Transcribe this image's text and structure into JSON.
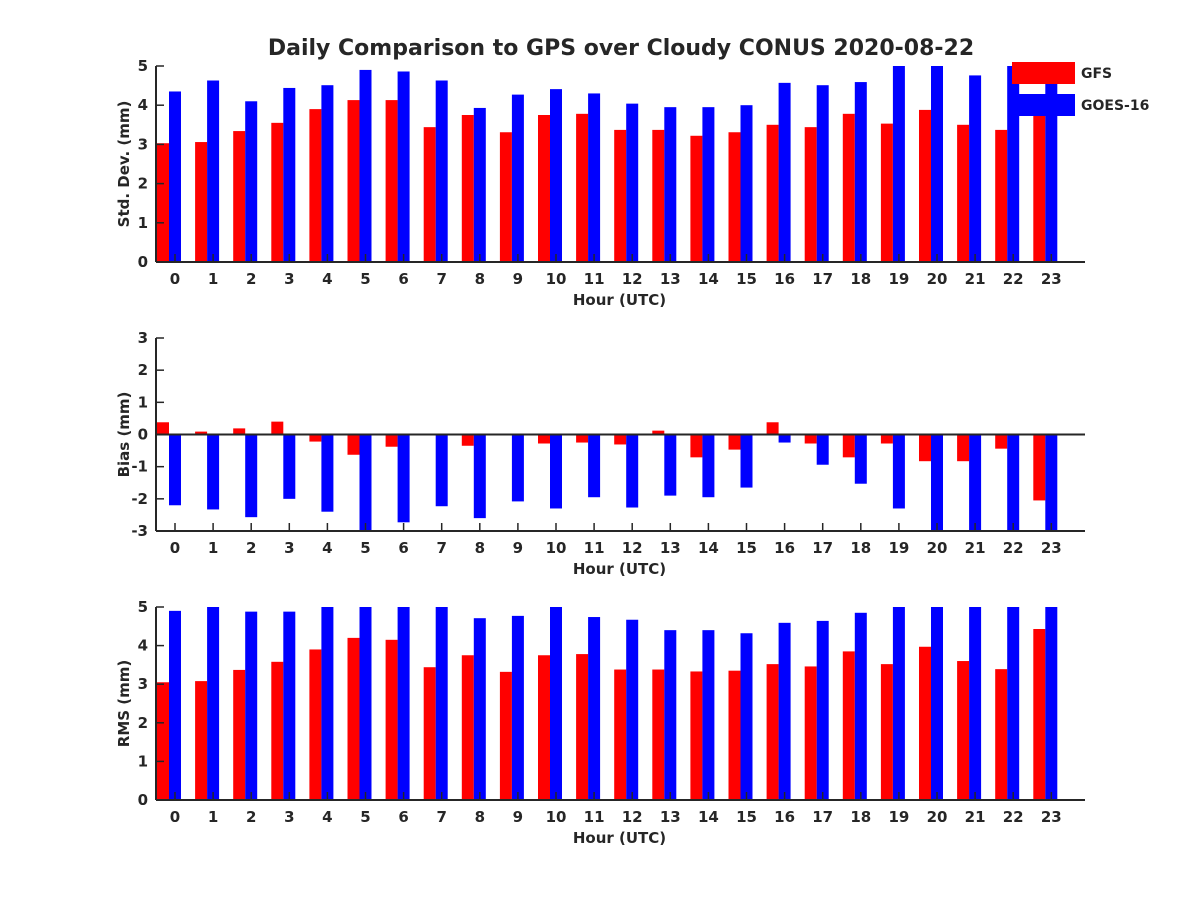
{
  "title": "Daily Comparison to GPS over Cloudy CONUS 2020-08-22",
  "legend": {
    "placement": "top-right",
    "entries": [
      {
        "label": "GFS",
        "color": "#ff0000"
      },
      {
        "label": "GOES-16",
        "color": "#0000ff"
      }
    ]
  },
  "colors": {
    "GFS": "#ff0000",
    "GOES-16": "#0000ff",
    "axis": "#262626"
  },
  "chart_data": [
    {
      "type": "bar",
      "xlabel": "Hour (UTC)",
      "ylabel": "Std. Dev. (mm)",
      "ylim": [
        0,
        5
      ],
      "yticks": [
        0,
        1,
        2,
        3,
        4,
        5
      ],
      "categories": [
        "0",
        "1",
        "2",
        "3",
        "4",
        "5",
        "6",
        "7",
        "8",
        "9",
        "10",
        "11",
        "12",
        "13",
        "14",
        "15",
        "16",
        "17",
        "18",
        "19",
        "20",
        "21",
        "22",
        "23"
      ],
      "grid": false,
      "series": [
        {
          "name": "GFS",
          "values": [
            3.03,
            3.06,
            3.34,
            3.55,
            3.9,
            4.13,
            4.13,
            3.44,
            3.75,
            3.31,
            3.75,
            3.78,
            3.37,
            3.37,
            3.22,
            3.31,
            3.5,
            3.44,
            3.78,
            3.53,
            3.88,
            3.5,
            3.37,
            4.02
          ]
        },
        {
          "name": "GOES-16",
          "values": [
            4.35,
            4.63,
            4.1,
            4.44,
            4.51,
            4.9,
            4.86,
            4.63,
            3.93,
            4.27,
            4.41,
            4.3,
            4.04,
            3.95,
            3.95,
            4.0,
            4.57,
            4.51,
            4.59,
            5.1,
            5.2,
            4.76,
            5.1,
            5.1
          ]
        }
      ]
    },
    {
      "type": "bar",
      "xlabel": "Hour (UTC)",
      "ylabel": "Bias (mm)",
      "ylim": [
        -3,
        3
      ],
      "yticks": [
        -3,
        -2,
        -1,
        0,
        1,
        2,
        3
      ],
      "zero_line": true,
      "categories": [
        "0",
        "1",
        "2",
        "3",
        "4",
        "5",
        "6",
        "7",
        "8",
        "9",
        "10",
        "11",
        "12",
        "13",
        "14",
        "15",
        "16",
        "17",
        "18",
        "19",
        "20",
        "21",
        "22",
        "23"
      ],
      "grid": false,
      "series": [
        {
          "name": "GFS",
          "values": [
            0.38,
            0.09,
            0.19,
            0.4,
            -0.22,
            -0.63,
            -0.38,
            0.03,
            -0.35,
            0.0,
            -0.28,
            -0.25,
            -0.31,
            0.12,
            -0.71,
            -0.47,
            0.38,
            -0.28,
            -0.71,
            -0.28,
            -0.83,
            -0.83,
            -0.44,
            -2.05
          ]
        },
        {
          "name": "GOES-16",
          "values": [
            -2.2,
            -2.33,
            -2.57,
            -2.0,
            -2.4,
            -3.2,
            -2.73,
            -2.23,
            -2.6,
            -2.08,
            -2.3,
            -1.95,
            -2.27,
            -1.9,
            -1.95,
            -1.65,
            -0.25,
            -0.94,
            -1.53,
            -2.3,
            -3.2,
            -3.2,
            -3.2,
            -3.2
          ]
        }
      ]
    },
    {
      "type": "bar",
      "xlabel": "Hour (UTC)",
      "ylabel": "RMS (mm)",
      "ylim": [
        0,
        5
      ],
      "yticks": [
        0,
        1,
        2,
        3,
        4,
        5
      ],
      "categories": [
        "0",
        "1",
        "2",
        "3",
        "4",
        "5",
        "6",
        "7",
        "8",
        "9",
        "10",
        "11",
        "12",
        "13",
        "14",
        "15",
        "16",
        "17",
        "18",
        "19",
        "20",
        "21",
        "22",
        "23"
      ],
      "grid": false,
      "series": [
        {
          "name": "GFS",
          "values": [
            3.05,
            3.08,
            3.37,
            3.58,
            3.9,
            4.2,
            4.15,
            3.44,
            3.75,
            3.32,
            3.75,
            3.78,
            3.38,
            3.38,
            3.33,
            3.35,
            3.52,
            3.46,
            3.85,
            3.52,
            3.97,
            3.6,
            3.39,
            4.43
          ]
        },
        {
          "name": "GOES-16",
          "values": [
            4.9,
            5.1,
            4.88,
            4.88,
            5.1,
            5.1,
            5.1,
            5.1,
            4.71,
            4.77,
            5.1,
            4.74,
            4.67,
            4.4,
            4.4,
            4.32,
            4.59,
            4.64,
            4.85,
            5.1,
            5.1,
            5.1,
            5.1,
            5.1
          ]
        }
      ]
    }
  ]
}
